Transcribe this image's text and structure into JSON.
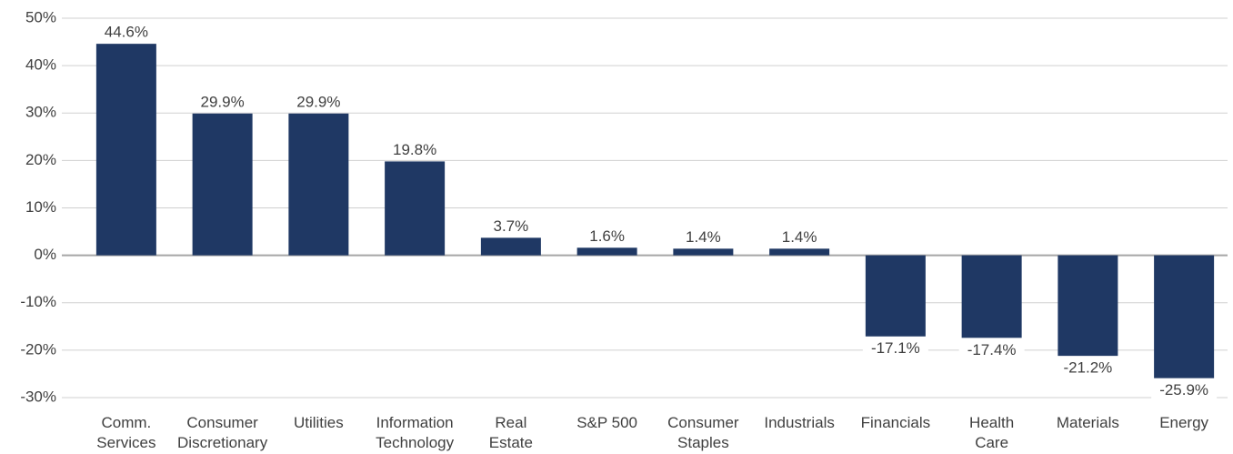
{
  "chart_data": {
    "type": "bar",
    "categories": [
      "Comm.\nServices",
      "Consumer\nDiscretionary",
      "Utilities",
      "Information\nTechnology",
      "Real\nEstate",
      "S&P 500",
      "Consumer\nStaples",
      "Industrials",
      "Financials",
      "Health\nCare",
      "Materials",
      "Energy"
    ],
    "values": [
      44.6,
      29.9,
      29.9,
      19.8,
      3.7,
      1.6,
      1.4,
      1.4,
      -17.1,
      -17.4,
      -21.2,
      -25.9
    ],
    "value_labels": [
      "44.6%",
      "29.9%",
      "29.9%",
      "19.8%",
      "3.7%",
      "1.6%",
      "1.4%",
      "1.4%",
      "-17.1%",
      "-17.4%",
      "-21.2%",
      "-25.9%"
    ],
    "color": "#1f3864",
    "ylim": [
      -30,
      50
    ],
    "yticks": [
      {
        "value": -30,
        "label": "-30%"
      },
      {
        "value": -20,
        "label": "-20%"
      },
      {
        "value": -10,
        "label": "-10%"
      },
      {
        "value": 0,
        "label": "0%"
      },
      {
        "value": 10,
        "label": "10%"
      },
      {
        "value": 20,
        "label": "20%"
      },
      {
        "value": 30,
        "label": "30%"
      },
      {
        "value": 40,
        "label": "40%"
      },
      {
        "value": 50,
        "label": "50%"
      }
    ],
    "grid": true
  }
}
